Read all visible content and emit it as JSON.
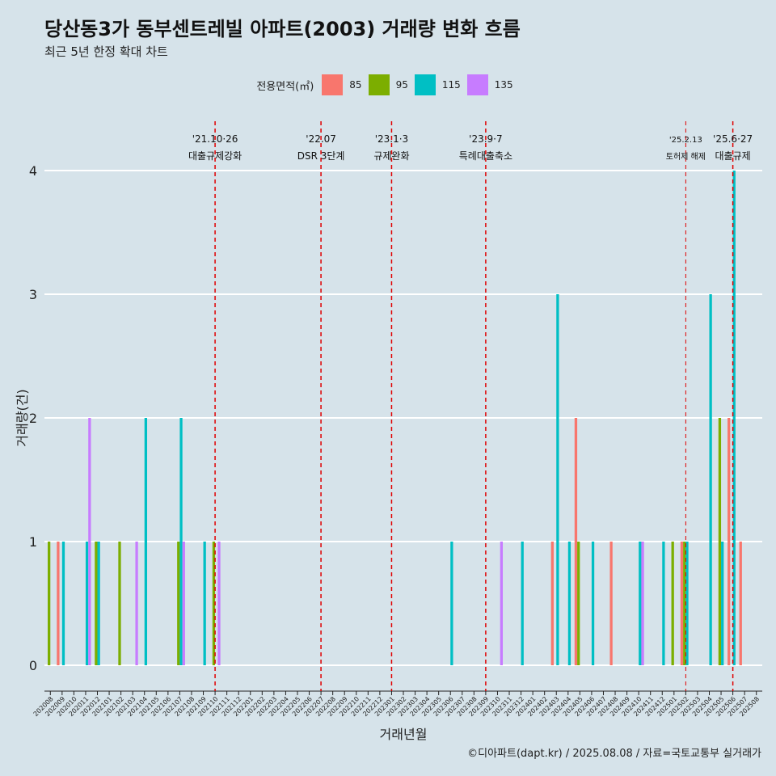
{
  "title": "당산동3가 동부센트레빌 아파트(2003) 거래량 변화 흐름",
  "subtitle": "최근 5년 한정 확대 차트",
  "caption": "©디아파트(dapt.kr) / 2025.08.08 / 자료=국토교통부 실거래가",
  "legend": {
    "title": "전용면적(㎡)",
    "items": [
      {
        "label": "85",
        "color": "#f8766d"
      },
      {
        "label": "95",
        "color": "#7cae00"
      },
      {
        "label": "115",
        "color": "#00bfc4"
      },
      {
        "label": "135",
        "color": "#c77cff"
      }
    ]
  },
  "chart_data": {
    "type": "bar",
    "xlabel": "거래년월",
    "ylabel": "거래량(건)",
    "ylim": [
      0,
      4
    ],
    "yticks": [
      0,
      1,
      2,
      3,
      4
    ],
    "categories": [
      "202008",
      "202009",
      "202010",
      "202011",
      "202012",
      "202101",
      "202102",
      "202103",
      "202104",
      "202105",
      "202106",
      "202107",
      "202108",
      "202109",
      "202110",
      "202111",
      "202112",
      "202201",
      "202202",
      "202203",
      "202204",
      "202205",
      "202206",
      "202207",
      "202208",
      "202209",
      "202210",
      "202211",
      "202212",
      "202301",
      "202302",
      "202303",
      "202304",
      "202305",
      "202306",
      "202307",
      "202308",
      "202309",
      "202310",
      "202311",
      "202312",
      "202401",
      "202402",
      "202403",
      "202404",
      "202405",
      "202406",
      "202407",
      "202408",
      "202409",
      "202410",
      "202411",
      "202412",
      "202501",
      "202502",
      "202503",
      "202504",
      "202505",
      "202506",
      "202507",
      "202508"
    ],
    "series": [
      {
        "name": "85",
        "values": [
          0,
          1,
          0,
          0,
          0,
          0,
          0,
          0,
          0,
          0,
          0,
          0,
          0,
          0,
          0,
          0,
          0,
          0,
          0,
          0,
          0,
          0,
          0,
          0,
          0,
          0,
          0,
          0,
          0,
          0,
          0,
          0,
          0,
          0,
          0,
          0,
          0,
          0,
          0,
          0,
          0,
          0,
          0,
          1,
          0,
          2,
          0,
          0,
          1,
          0,
          0,
          0,
          0,
          0,
          1,
          0,
          0,
          0,
          2,
          1,
          0
        ]
      },
      {
        "name": "95",
        "values": [
          1,
          0,
          0,
          0,
          1,
          0,
          1,
          0,
          0,
          0,
          0,
          1,
          0,
          0,
          1,
          0,
          0,
          0,
          0,
          0,
          0,
          0,
          0,
          0,
          0,
          0,
          0,
          0,
          0,
          0,
          0,
          0,
          0,
          0,
          0,
          0,
          0,
          0,
          0,
          0,
          0,
          0,
          0,
          0,
          0,
          1,
          0,
          0,
          0,
          0,
          0,
          0,
          0,
          1,
          1,
          0,
          0,
          2,
          0,
          0,
          0
        ]
      },
      {
        "name": "115",
        "values": [
          0,
          1,
          0,
          1,
          1,
          0,
          0,
          0,
          2,
          0,
          0,
          2,
          0,
          1,
          0,
          0,
          0,
          0,
          0,
          0,
          0,
          0,
          0,
          0,
          0,
          0,
          0,
          0,
          0,
          0,
          0,
          0,
          0,
          0,
          1,
          0,
          0,
          0,
          0,
          0,
          1,
          0,
          0,
          3,
          1,
          0,
          1,
          0,
          0,
          0,
          1,
          0,
          1,
          0,
          1,
          0,
          3,
          1,
          4,
          0,
          0
        ]
      },
      {
        "name": "135",
        "values": [
          0,
          0,
          0,
          2,
          0,
          0,
          0,
          1,
          0,
          0,
          0,
          1,
          0,
          0,
          1,
          0,
          0,
          0,
          0,
          0,
          0,
          0,
          0,
          0,
          0,
          0,
          0,
          0,
          0,
          0,
          0,
          0,
          0,
          0,
          0,
          0,
          0,
          0,
          1,
          0,
          0,
          0,
          0,
          0,
          0,
          0,
          0,
          0,
          0,
          0,
          1,
          0,
          0,
          0,
          0,
          0,
          0,
          0,
          0,
          0,
          0
        ]
      }
    ],
    "annotations": [
      {
        "date": "202110",
        "label1": "'21.10·26",
        "label2": "대출규제강화"
      },
      {
        "date": "202207",
        "label1": "'22.07",
        "label2": "DSR 3단계"
      },
      {
        "date": "202301",
        "label1": "'23.1·3",
        "label2": "규제완화"
      },
      {
        "date": "202309",
        "label1": "'23.9·7",
        "label2": "특례대출축소"
      },
      {
        "date": "202502",
        "label1": "'25.2.13",
        "label2": "토허제 해제"
      },
      {
        "date": "202506",
        "label1": "'25.6·27",
        "label2": "대출규제"
      }
    ],
    "grid": true,
    "legend_position": "top"
  }
}
